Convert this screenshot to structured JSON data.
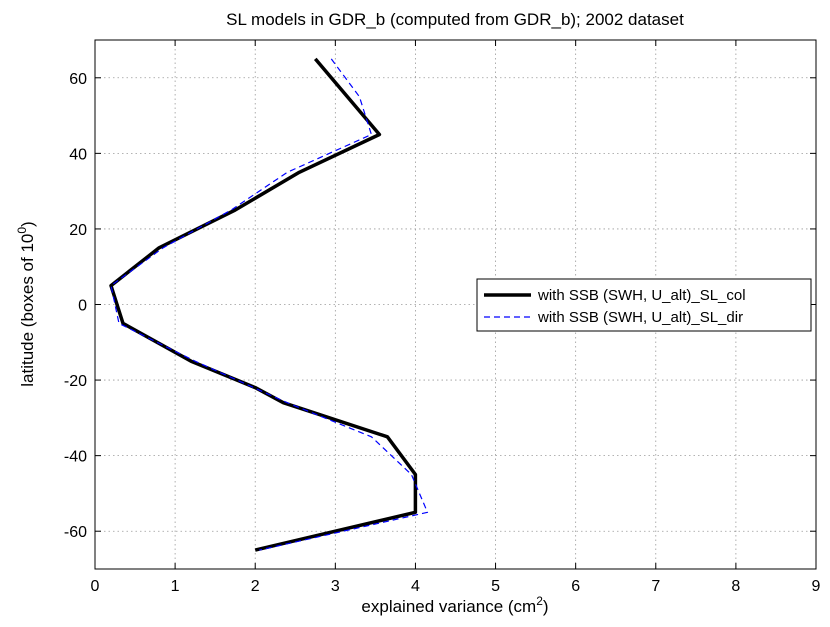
{
  "chart_data": {
    "type": "line",
    "title": "SL models in GDR_b (computed from GDR_b); 2002 dataset",
    "xlabel": "explained variance (cm",
    "xlabel_sup": "2",
    "xlabel_end": ")",
    "ylabel": "latitude (boxes of 10",
    "ylabel_sup": "0",
    "ylabel_end": ")",
    "xlim": [
      0,
      9
    ],
    "ylim": [
      -70,
      70
    ],
    "xticks": [
      0,
      1,
      2,
      3,
      4,
      5,
      6,
      7,
      8,
      9
    ],
    "yticks": [
      -60,
      -40,
      -20,
      0,
      20,
      40,
      60
    ],
    "grid": true,
    "legend_position": "right",
    "series": [
      {
        "name": "with SSB (SWH, U_alt)_SL_col",
        "color": "#000000",
        "style": "solid",
        "points": [
          {
            "x": 2.75,
            "y": 65
          },
          {
            "x": 3.15,
            "y": 55
          },
          {
            "x": 3.55,
            "y": 45
          },
          {
            "x": 2.55,
            "y": 35
          },
          {
            "x": 1.75,
            "y": 25
          },
          {
            "x": 0.8,
            "y": 15
          },
          {
            "x": 0.2,
            "y": 5
          },
          {
            "x": 0.35,
            "y": -5
          },
          {
            "x": 1.2,
            "y": -15
          },
          {
            "x": 2.0,
            "y": -22
          },
          {
            "x": 2.35,
            "y": -26
          },
          {
            "x": 3.65,
            "y": -35
          },
          {
            "x": 4.0,
            "y": -45
          },
          {
            "x": 4.0,
            "y": -55
          },
          {
            "x": 2.0,
            "y": -65
          }
        ]
      },
      {
        "name": "with SSB (SWH, U_alt)_SL_dir",
        "color": "#0000ff",
        "style": "dashed",
        "points": [
          {
            "x": 2.95,
            "y": 65
          },
          {
            "x": 3.3,
            "y": 55
          },
          {
            "x": 3.45,
            "y": 45
          },
          {
            "x": 2.4,
            "y": 35
          },
          {
            "x": 1.7,
            "y": 25
          },
          {
            "x": 0.85,
            "y": 15
          },
          {
            "x": 0.2,
            "y": 5
          },
          {
            "x": 0.3,
            "y": -5
          },
          {
            "x": 1.25,
            "y": -15
          },
          {
            "x": 2.4,
            "y": -26
          },
          {
            "x": 3.45,
            "y": -35
          },
          {
            "x": 3.95,
            "y": -45
          },
          {
            "x": 4.15,
            "y": -55
          },
          {
            "x": 2.05,
            "y": -65
          }
        ]
      }
    ]
  }
}
